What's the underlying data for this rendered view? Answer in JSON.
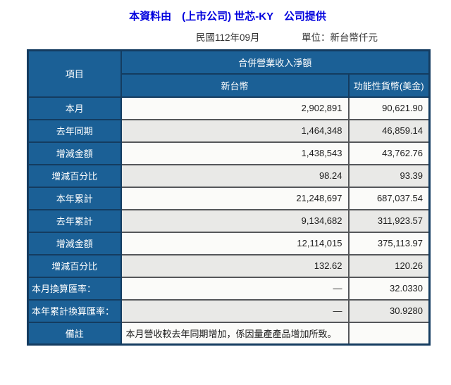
{
  "header": {
    "title": "本資料由　(上市公司) 世芯-KY　公司提供",
    "period": "民國112年09月",
    "unit": "單位：新台幣仟元"
  },
  "colors": {
    "title_blue": "#0000DD",
    "cell_blue": "#1B6096",
    "border_navy": "#143C60",
    "row_white": "#FBFBF9",
    "row_gray": "#E9E9E7",
    "data_border_gray": "#55575A"
  },
  "table": {
    "item_header": "項目",
    "group_header": "合併營業收入淨額",
    "columns": [
      "新台幣",
      "功能性貨幣(美金)"
    ],
    "rows": [
      {
        "label": "本月",
        "twd": "2,902,891",
        "usd": "90,621.90"
      },
      {
        "label": "去年同期",
        "twd": "1,464,348",
        "usd": "46,859.14"
      },
      {
        "label": "增減金額",
        "twd": "1,438,543",
        "usd": "43,762.76"
      },
      {
        "label": "增減百分比",
        "twd": "98.24",
        "usd": "93.39"
      },
      {
        "label": "本年累計",
        "twd": "21,248,697",
        "usd": "687,037.54"
      },
      {
        "label": "去年累計",
        "twd": "9,134,682",
        "usd": "311,923.57"
      },
      {
        "label": "增減金額",
        "twd": "12,114,015",
        "usd": "375,113.97"
      },
      {
        "label": "增減百分比",
        "twd": "132.62",
        "usd": "120.26"
      },
      {
        "label": "本月換算匯率：",
        "twd": "—",
        "usd": "32.0330"
      },
      {
        "label": "本年累計換算匯率：",
        "twd": "—",
        "usd": "30.9280"
      },
      {
        "label": "備註",
        "twd": "本月營收較去年同期增加，係因量產產品增加所致。",
        "usd": ""
      }
    ]
  }
}
